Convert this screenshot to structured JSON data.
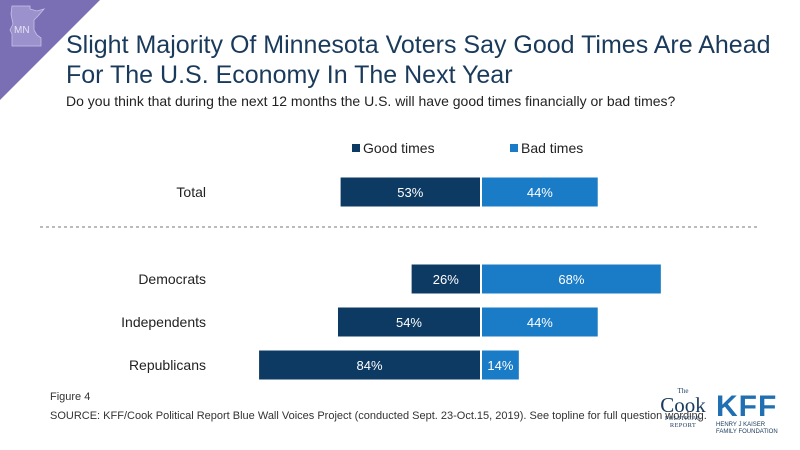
{
  "badge": {
    "state_abbr": "MN",
    "color": "#7a6fb5"
  },
  "title": "Slight Majority Of Minnesota Voters Say Good Times Are Ahead For The U.S. Economy In The Next Year",
  "subtitle": "Do you think that during the next 12 months the U.S. will have good times financially or bad times?",
  "chart_data": {
    "type": "bar",
    "orientation": "horizontal-diverging",
    "categories": [
      "Total",
      "Democrats",
      "Independents",
      "Republicans"
    ],
    "series": [
      {
        "name": "Good times",
        "values": [
          53,
          26,
          54,
          84
        ],
        "color": "#0d3a63",
        "side": "left"
      },
      {
        "name": "Bad times",
        "values": [
          44,
          68,
          44,
          14
        ],
        "color": "#1a7bc6",
        "side": "right"
      }
    ],
    "value_suffix": "%",
    "legend_position": "top",
    "separator_after": "Total",
    "grid": false
  },
  "footer": {
    "figure": "Figure 4",
    "source": "SOURCE: KFF/Cook Political Report Blue Wall Voices Project (conducted Sept. 23-Oct.15, 2019). See topline for full question wording."
  },
  "logos": {
    "cook": {
      "the": "The",
      "name": "Cook",
      "line1": "POLITICAL",
      "line2": "REPORT"
    },
    "kff": {
      "name": "KFF",
      "line1": "HENRY J KAISER",
      "line2": "FAMILY FOUNDATION"
    }
  }
}
